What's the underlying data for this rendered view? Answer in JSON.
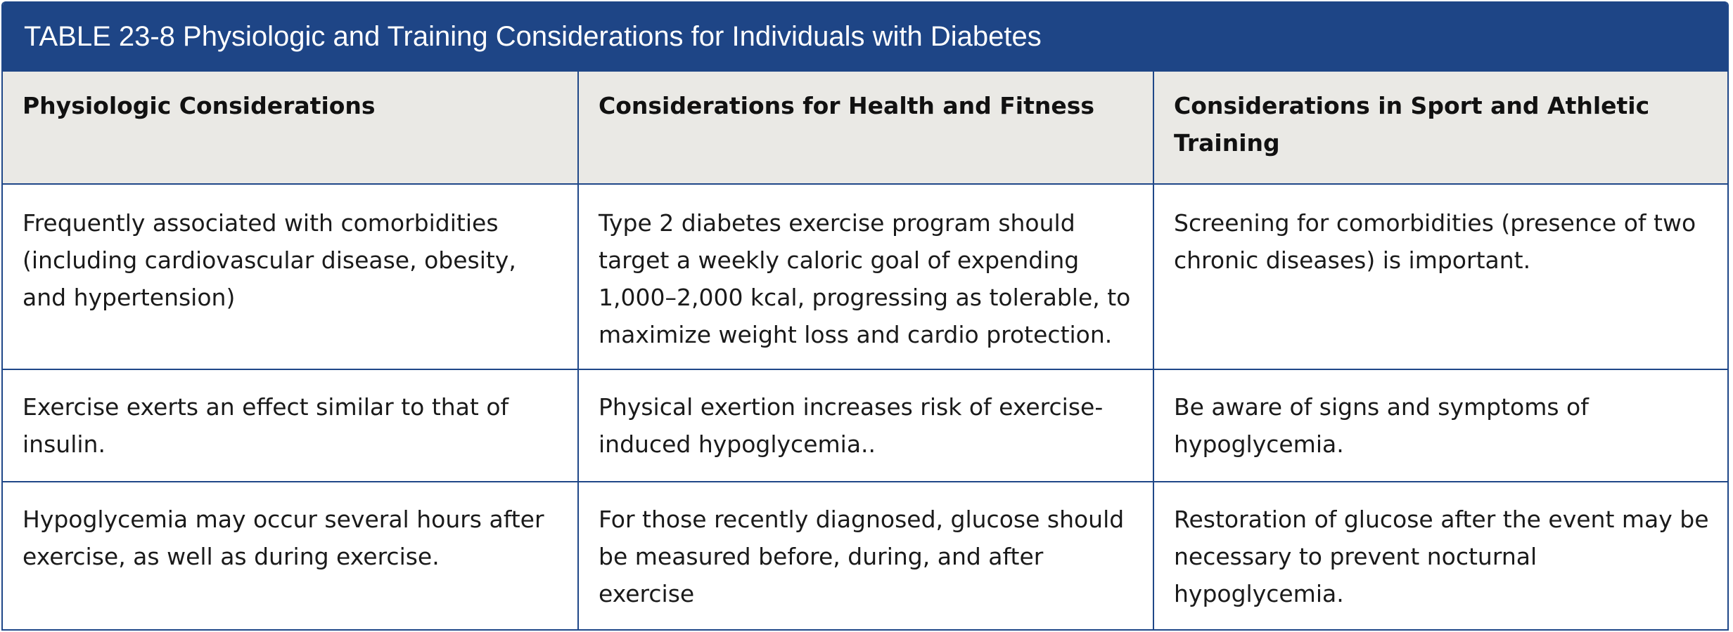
{
  "table": {
    "title": "TABLE 23-8 Physiologic and Training Considerations for Individuals with Diabetes",
    "columns": [
      "Physiologic Considerations",
      "Considerations for Health and Fitness",
      "Considerations in Sport and Athletic Training"
    ],
    "rows": [
      [
        "Frequently associated with comorbidities (including cardiovascular disease, obesity, and hypertension)",
        "Type 2 diabetes exercise program should target a weekly caloric goal of expending 1,000–2,000 kcal, progressing as tolerable, to maximize weight loss and cardio protection.",
        "Screening for comorbidities (presence of two chronic diseases) is important."
      ],
      [
        "Exercise exerts an effect similar to that of insulin.",
        "Physical exertion increases risk of exercise-induced hypoglycemia..",
        "Be aware of signs and symptoms of hypoglycemia."
      ],
      [
        "Hypoglycemia may occur several hours after exercise, as well as during exercise.",
        "For those recently diagnosed, glucose should be measured before, during, and after exercise",
        "Restoration of glucose after the event may be necessary to prevent nocturnal hypoglycemia."
      ]
    ]
  },
  "colors": {
    "header_bar": "#1e4586",
    "border": "#1f4788",
    "column_header_bg": "#eae9e5"
  }
}
